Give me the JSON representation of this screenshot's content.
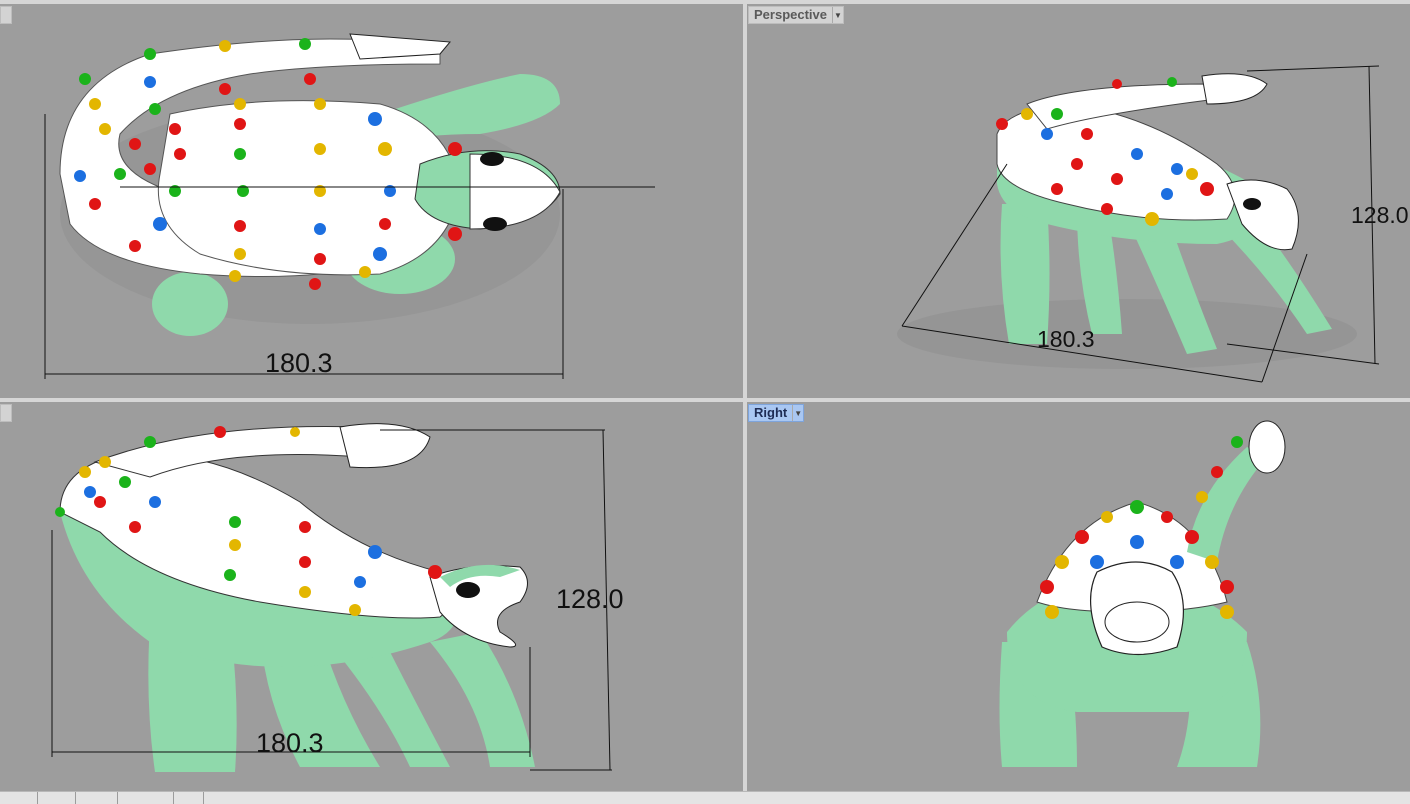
{
  "viewports": {
    "top": {
      "label": ""
    },
    "perspective": {
      "label": "Perspective",
      "width_dim": "180.3",
      "height_dim": "128.0"
    },
    "front": {
      "label": "",
      "width_dim": "180.3",
      "height_dim": "128.0"
    },
    "right": {
      "label": "Right"
    },
    "top_width_dim": "180.3"
  },
  "tabs": [
    "",
    "",
    "",
    "",
    ""
  ],
  "colors": {
    "viewport_bg": "#9d9d9d",
    "body_green": "#8fd9ab",
    "shell_white": "#ffffff",
    "spike_red": "#e01515",
    "spike_blue": "#1c6fe0",
    "spike_green": "#1bb31b",
    "spike_yellow": "#e3b600",
    "active_label": "#a9c7f2"
  },
  "icons": {
    "viewport_menu": "chevron-down-icon"
  }
}
